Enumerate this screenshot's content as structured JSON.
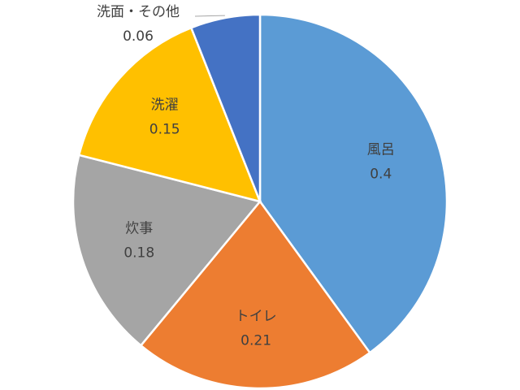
{
  "chart_data": {
    "type": "pie",
    "categories": [
      "風呂",
      "トイレ",
      "炊事",
      "洗濯",
      "洗面・その他"
    ],
    "values": [
      0.4,
      0.21,
      0.18,
      0.15,
      0.06
    ],
    "colors": [
      "#5b9bd5",
      "#ed7d31",
      "#a5a5a5",
      "#ffc000",
      "#4472c4"
    ]
  }
}
